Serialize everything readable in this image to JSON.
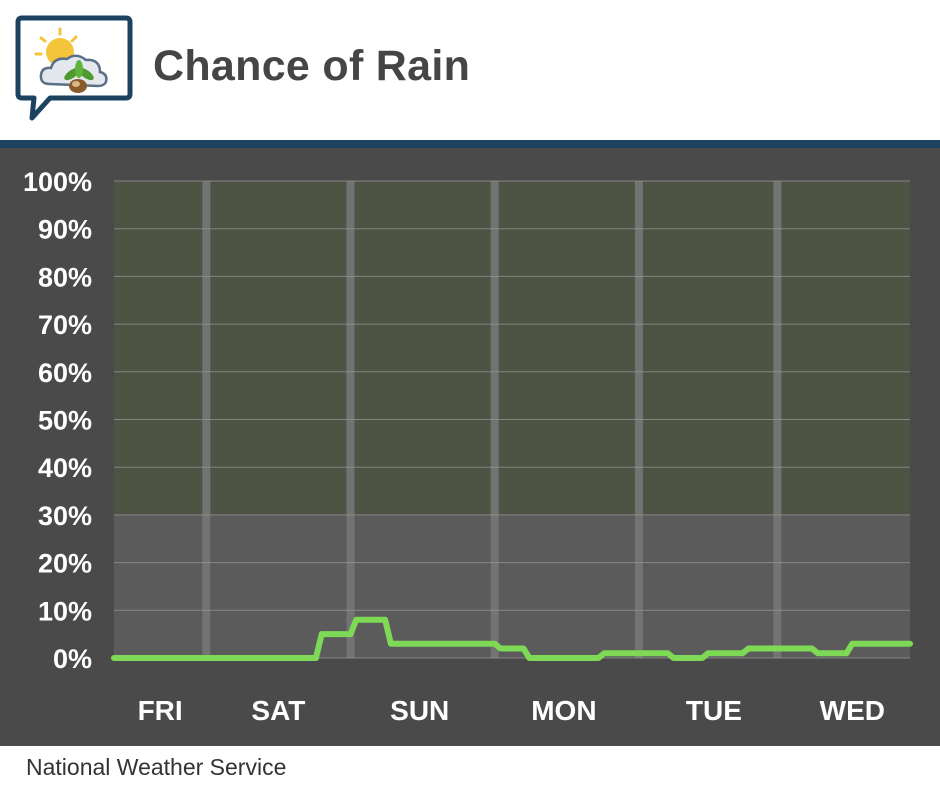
{
  "header": {
    "title": "Chance of Rain",
    "logo_icon": "weather-partly-sunny-leaf-icon"
  },
  "source": "National Weather Service",
  "colors": {
    "header_rule": "#1d4260",
    "panel_bg": "#4a4a4a",
    "plot_upper_band": "#4d5444",
    "plot_lower_band": "#5b5b5b",
    "line": "#7ed957",
    "day_separator": "#737373",
    "gridline": "#9a9a9a"
  },
  "chart_data": {
    "type": "line",
    "title": "Chance of Rain",
    "xlabel": "",
    "ylabel": "",
    "ylim": [
      0,
      100
    ],
    "y_ticks": [
      "0%",
      "10%",
      "20%",
      "30%",
      "40%",
      "50%",
      "60%",
      "70%",
      "80%",
      "90%",
      "100%"
    ],
    "x_range_hours": [
      0,
      138
    ],
    "day_labels": [
      {
        "label": "FRI",
        "hour": 8
      },
      {
        "label": "SAT",
        "hour": 28.5
      },
      {
        "label": "SUN",
        "hour": 53
      },
      {
        "label": "MON",
        "hour": 78
      },
      {
        "label": "TUE",
        "hour": 104
      },
      {
        "label": "WED",
        "hour": 128
      }
    ],
    "day_separators_hours": [
      16,
      41,
      66,
      91,
      115
    ],
    "grid": true,
    "series": [
      {
        "values_hourly_step": [
          [
            0,
            0
          ],
          [
            35,
            0
          ],
          [
            36,
            5
          ],
          [
            41,
            5
          ],
          [
            42,
            8
          ],
          [
            47,
            8
          ],
          [
            48,
            3
          ],
          [
            66,
            3
          ],
          [
            67,
            2
          ],
          [
            71,
            2
          ],
          [
            72,
            0
          ],
          [
            84,
            0
          ],
          [
            85,
            1
          ],
          [
            96,
            1
          ],
          [
            97,
            0
          ],
          [
            102,
            0
          ],
          [
            103,
            1
          ],
          [
            109,
            1
          ],
          [
            110,
            2
          ],
          [
            121,
            2
          ],
          [
            122,
            1
          ],
          [
            127,
            1
          ],
          [
            128,
            3
          ],
          [
            138,
            3
          ]
        ]
      }
    ]
  }
}
